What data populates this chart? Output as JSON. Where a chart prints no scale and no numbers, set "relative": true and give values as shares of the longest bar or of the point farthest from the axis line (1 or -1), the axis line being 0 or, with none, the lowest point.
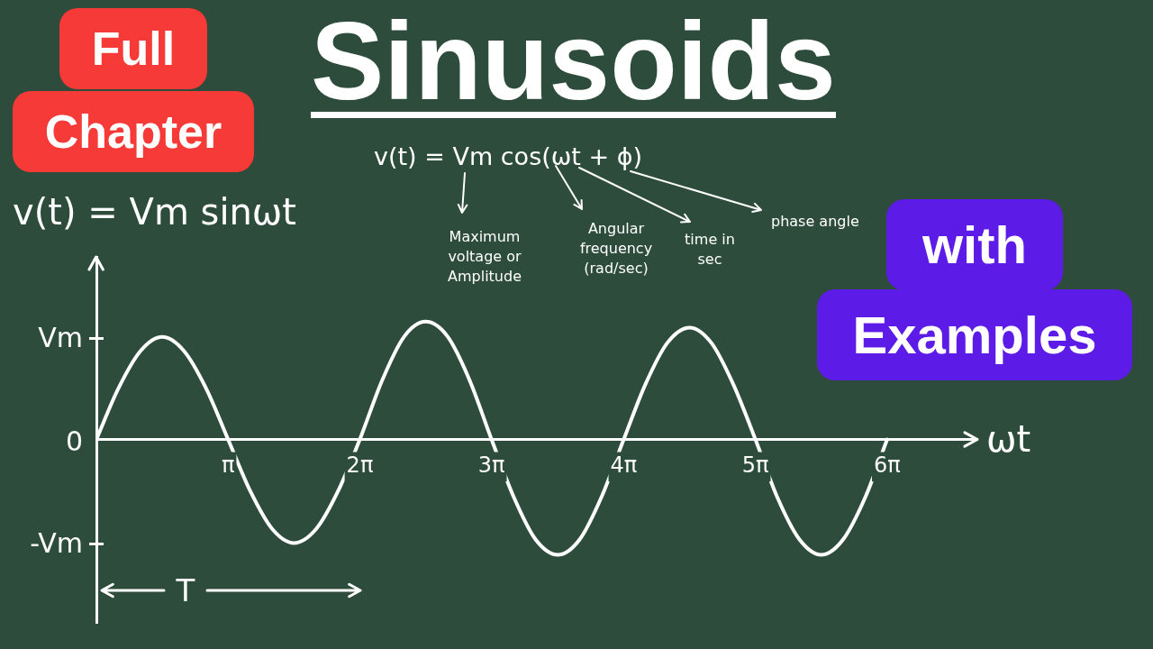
{
  "chart_data": {
    "type": "line",
    "relative": true,
    "title": "Sinusoids",
    "xlabel": "ωt",
    "ylabel": "v(t) = Vm sinωt",
    "annotations": [
      "Full Chapter",
      "with Examples",
      "v(t) = Vm cos(ωt + ϕ)",
      "Maximum voltage or Amplitude",
      "Angular frequency (rad/sec)",
      "time in sec",
      "phase angle",
      "Vm",
      "0",
      "-Vm",
      "T"
    ],
    "x": [
      0,
      0.52,
      1.05,
      1.57,
      2.09,
      2.62,
      3.14,
      3.67,
      4.19,
      4.71,
      5.24,
      5.76,
      6.28,
      6.81,
      7.33,
      7.85,
      8.38,
      8.9,
      9.42,
      9.95,
      10.47,
      11.0,
      11.52,
      12.04,
      12.57,
      13.09,
      13.61,
      14.14,
      14.66,
      15.18,
      15.71,
      16.23,
      16.76,
      17.28,
      17.8,
      18.33,
      18.85
    ],
    "series": [
      {
        "color": "#ffffff",
        "values": [
          0,
          0.43,
          0.75,
          0.87,
          0.75,
          0.43,
          0,
          -0.44,
          -0.76,
          -0.88,
          -0.76,
          -0.44,
          0,
          0.5,
          0.87,
          1,
          0.87,
          0.5,
          0,
          -0.49,
          -0.85,
          -0.98,
          -0.85,
          -0.49,
          0,
          0.47,
          0.82,
          0.95,
          0.82,
          0.47,
          0,
          -0.49,
          -0.85,
          -0.98,
          -0.85,
          -0.49,
          0
        ]
      }
    ],
    "xlim": [
      0,
      21
    ],
    "xticks": [
      {
        "value": 3.14,
        "label": "π"
      },
      {
        "value": 6.28,
        "label": "2π"
      },
      {
        "value": 9.42,
        "label": "3π"
      },
      {
        "value": 12.57,
        "label": "4π"
      },
      {
        "value": 15.71,
        "label": "5π"
      },
      {
        "value": 18.85,
        "label": "6π"
      }
    ],
    "grid": false,
    "legend": false,
    "marker": "none",
    "line_style": "solid"
  }
}
